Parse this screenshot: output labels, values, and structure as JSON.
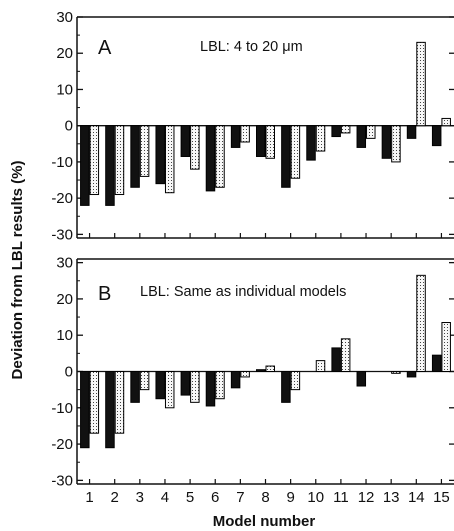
{
  "chart_data": [
    {
      "type": "bar",
      "panel": "A",
      "annotation": "LBL: 4 to 20 μm",
      "categories": [
        "1",
        "2",
        "3",
        "4",
        "5",
        "6",
        "7",
        "8",
        "9",
        "10",
        "11",
        "12",
        "13",
        "14",
        "15"
      ],
      "series": [
        {
          "values": [
            -22,
            -22,
            -17,
            -16,
            -8.5,
            -18,
            -6,
            -8.5,
            -17,
            -9.5,
            -3,
            -6,
            -9,
            -3.5,
            -5.5
          ]
        },
        {
          "values": [
            -19,
            -19,
            -14,
            -18.5,
            -12,
            -17,
            -4.5,
            -9,
            -14.5,
            -7,
            -2,
            -3.5,
            -10,
            23,
            2
          ]
        }
      ],
      "ylim": [
        -31,
        30
      ],
      "yticks": [
        30,
        20,
        10,
        0,
        -10,
        -20,
        -30
      ],
      "colors": {
        "series_1": "#111111",
        "series_2": "#f2f2f2"
      }
    },
    {
      "type": "bar",
      "panel": "B",
      "annotation": "LBL: Same as individual models",
      "categories": [
        "1",
        "2",
        "3",
        "4",
        "5",
        "6",
        "7",
        "8",
        "9",
        "10",
        "11",
        "12",
        "13",
        "14",
        "15"
      ],
      "series": [
        {
          "values": [
            -21,
            -21,
            -8.5,
            -7.5,
            -6.5,
            -9.5,
            -4.5,
            0.5,
            -8.5,
            0,
            6.5,
            -4,
            0,
            -1.5,
            4.5
          ]
        },
        {
          "values": [
            -17,
            -17,
            -5,
            -10,
            -8.5,
            -7.5,
            -1.5,
            1.5,
            -5,
            3,
            9,
            0,
            -0.5,
            26.5,
            13.5
          ]
        }
      ],
      "ylim": [
        -31,
        31
      ],
      "yticks": [
        30,
        20,
        10,
        0,
        -10,
        -20,
        -30
      ],
      "colors": {
        "series_1": "#111111",
        "series_2": "#f2f2f2"
      }
    }
  ],
  "ylabel": "Deviation from LBL results (%)",
  "xlabel": "Model number"
}
